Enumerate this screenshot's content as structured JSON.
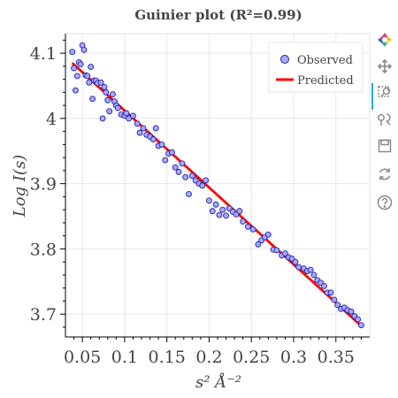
{
  "chart_data": {
    "type": "scatter",
    "title": "Guinier plot (R²=0.99)",
    "xlabel": "s² Å⁻²",
    "ylabel": "Log I(s)",
    "xlim": [
      0.03,
      0.39
    ],
    "ylim": [
      3.665,
      4.13
    ],
    "xticks": [
      0.05,
      0.1,
      0.15,
      0.2,
      0.25,
      0.3,
      0.35
    ],
    "xtick_labels": [
      "0.05",
      "0.1",
      "0.15",
      "0.2",
      "0.25",
      "0.3",
      "0.35"
    ],
    "yticks": [
      3.7,
      3.8,
      3.9,
      4.0,
      4.1
    ],
    "ytick_labels": [
      "3.7",
      "3.8",
      "3.9",
      "4",
      "4.1"
    ],
    "grid": true,
    "legend_position": "top-right",
    "series": [
      {
        "name": "Observed",
        "kind": "scatter",
        "marker_fill": "#a8a8ff",
        "marker_edge": "#2222aa",
        "points": [
          [
            0.038,
            4.102
          ],
          [
            0.04,
            4.077
          ],
          [
            0.042,
            4.043
          ],
          [
            0.044,
            4.065
          ],
          [
            0.046,
            4.086
          ],
          [
            0.048,
            4.083
          ],
          [
            0.05,
            4.112
          ],
          [
            0.052,
            4.105
          ],
          [
            0.054,
            4.066
          ],
          [
            0.056,
            4.065
          ],
          [
            0.058,
            4.055
          ],
          [
            0.06,
            4.079
          ],
          [
            0.062,
            4.03
          ],
          [
            0.064,
            4.058
          ],
          [
            0.066,
            4.058
          ],
          [
            0.068,
            4.054
          ],
          [
            0.072,
            4.055
          ],
          [
            0.074,
            4.0
          ],
          [
            0.076,
            4.048
          ],
          [
            0.078,
            4.04
          ],
          [
            0.08,
            4.028
          ],
          [
            0.082,
            4.011
          ],
          [
            0.086,
            4.037
          ],
          [
            0.088,
            4.026
          ],
          [
            0.09,
            4.02
          ],
          [
            0.092,
            4.016
          ],
          [
            0.096,
            4.006
          ],
          [
            0.1,
            4.004
          ],
          [
            0.102,
            4.008
          ],
          [
            0.105,
            4.0
          ],
          [
            0.11,
            4.004
          ],
          [
            0.115,
            3.992
          ],
          [
            0.118,
            3.978
          ],
          [
            0.122,
            3.985
          ],
          [
            0.126,
            3.975
          ],
          [
            0.13,
            3.972
          ],
          [
            0.134,
            3.968
          ],
          [
            0.137,
            3.985
          ],
          [
            0.14,
            3.958
          ],
          [
            0.144,
            3.96
          ],
          [
            0.148,
            3.936
          ],
          [
            0.152,
            3.946
          ],
          [
            0.156,
            3.948
          ],
          [
            0.16,
            3.925
          ],
          [
            0.164,
            3.918
          ],
          [
            0.168,
            3.931
          ],
          [
            0.172,
            3.91
          ],
          [
            0.176,
            3.884
          ],
          [
            0.18,
            3.912
          ],
          [
            0.184,
            3.905
          ],
          [
            0.188,
            3.9
          ],
          [
            0.192,
            3.897
          ],
          [
            0.196,
            3.905
          ],
          [
            0.2,
            3.874
          ],
          [
            0.204,
            3.858
          ],
          [
            0.208,
            3.868
          ],
          [
            0.212,
            3.852
          ],
          [
            0.216,
            3.86
          ],
          [
            0.22,
            3.851
          ],
          [
            0.224,
            3.862
          ],
          [
            0.228,
            3.857
          ],
          [
            0.232,
            3.853
          ],
          [
            0.236,
            3.858
          ],
          [
            0.24,
            3.842
          ],
          [
            0.246,
            3.834
          ],
          [
            0.252,
            3.83
          ],
          [
            0.258,
            3.807
          ],
          [
            0.262,
            3.813
          ],
          [
            0.266,
            3.818
          ],
          [
            0.27,
            3.822
          ],
          [
            0.276,
            3.799
          ],
          [
            0.28,
            3.798
          ],
          [
            0.286,
            3.79
          ],
          [
            0.29,
            3.793
          ],
          [
            0.294,
            3.787
          ],
          [
            0.298,
            3.785
          ],
          [
            0.302,
            3.78
          ],
          [
            0.306,
            3.772
          ],
          [
            0.312,
            3.77
          ],
          [
            0.316,
            3.766
          ],
          [
            0.32,
            3.768
          ],
          [
            0.324,
            3.76
          ],
          [
            0.328,
            3.752
          ],
          [
            0.332,
            3.748
          ],
          [
            0.336,
            3.743
          ],
          [
            0.34,
            3.733
          ],
          [
            0.344,
            3.733
          ],
          [
            0.348,
            3.722
          ],
          [
            0.352,
            3.714
          ],
          [
            0.356,
            3.708
          ],
          [
            0.36,
            3.71
          ],
          [
            0.364,
            3.706
          ],
          [
            0.368,
            3.704
          ],
          [
            0.372,
            3.697
          ],
          [
            0.376,
            3.692
          ],
          [
            0.38,
            3.683
          ]
        ]
      },
      {
        "name": "Predicted",
        "kind": "line",
        "color": "#ff0000",
        "points": [
          [
            0.038,
            4.085
          ],
          [
            0.38,
            3.682
          ]
        ]
      }
    ]
  },
  "toolbar": {
    "tools": [
      {
        "icon": "bokeh-logo-icon"
      },
      {
        "icon": "pan-icon"
      },
      {
        "icon": "box-zoom-icon"
      },
      {
        "icon": "wheel-zoom-icon"
      },
      {
        "icon": "save-icon"
      },
      {
        "icon": "reset-icon"
      },
      {
        "icon": "help-icon"
      }
    ],
    "active_color": "#26aae1"
  }
}
